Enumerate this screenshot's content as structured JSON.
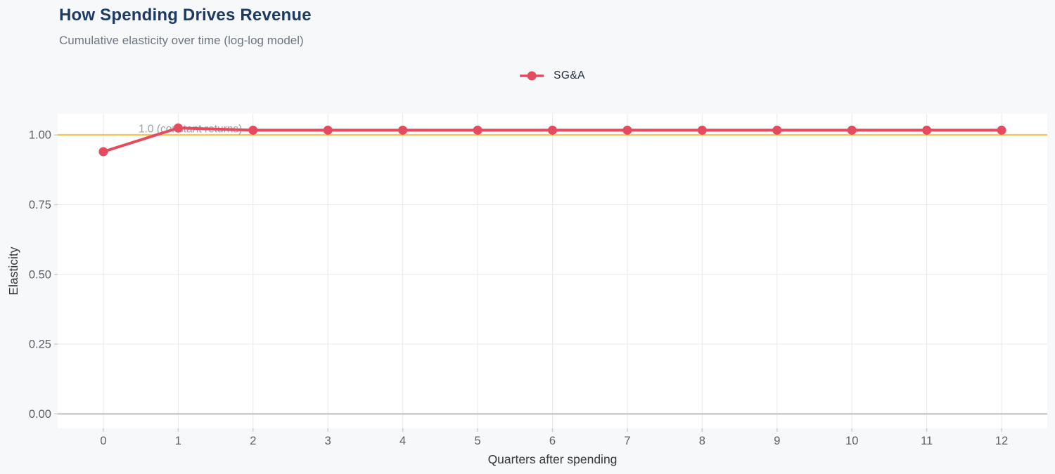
{
  "header": {
    "title": "How Spending Drives Revenue",
    "subtitle": "Cumulative elasticity over time (log-log model)"
  },
  "legend": {
    "items": [
      {
        "label": "SG&A",
        "color": "#e64a5f"
      }
    ]
  },
  "chart_data": {
    "type": "line",
    "title": "How Spending Drives Revenue",
    "subtitle": "Cumulative elasticity over time (log-log model)",
    "xlabel": "Quarters after spending",
    "ylabel": "Elasticity",
    "x": [
      0,
      1,
      2,
      3,
      4,
      5,
      6,
      7,
      8,
      9,
      10,
      11,
      12
    ],
    "series": [
      {
        "name": "SG&A",
        "color": "#e64a5f",
        "values": [
          0.94,
          1.025,
          1.017,
          1.017,
          1.017,
          1.017,
          1.017,
          1.017,
          1.017,
          1.017,
          1.017,
          1.017,
          1.017
        ]
      }
    ],
    "x_tick_labels": [
      "0",
      "1",
      "2",
      "3",
      "4",
      "5",
      "6",
      "7",
      "8",
      "9",
      "10",
      "11",
      "12"
    ],
    "x_ticks": [
      0,
      1,
      2,
      3,
      4,
      5,
      6,
      7,
      8,
      9,
      10,
      11,
      12
    ],
    "y_ticks": [
      0,
      0.25,
      0.5,
      0.75,
      1.0
    ],
    "y_tick_labels": [
      "0.00",
      "0.25",
      "0.50",
      "0.75",
      "1.00"
    ],
    "xlim": [
      -0.61,
      12.61
    ],
    "ylim": [
      -0.052,
      1.076
    ],
    "grid": true,
    "legend_position": "top-center",
    "reference_line": {
      "y": 1.0,
      "label": "1.0 (constant returns)",
      "color": "#f6c84f",
      "label_color": "#9aa1a9"
    }
  },
  "style": {
    "page_bg": "#f7f8fa",
    "panel_bg": "#ffffff",
    "title_color": "#1c3a63",
    "subtitle_color": "#6e7681",
    "grid_color": "#e8e9eb",
    "zero_line_color": "#c7c9cd",
    "tick_color": "#cdd0d4",
    "tick_label_color": "#5a5f66",
    "axis_title_color": "#33373c",
    "legend_label_color": "#222b3d"
  }
}
